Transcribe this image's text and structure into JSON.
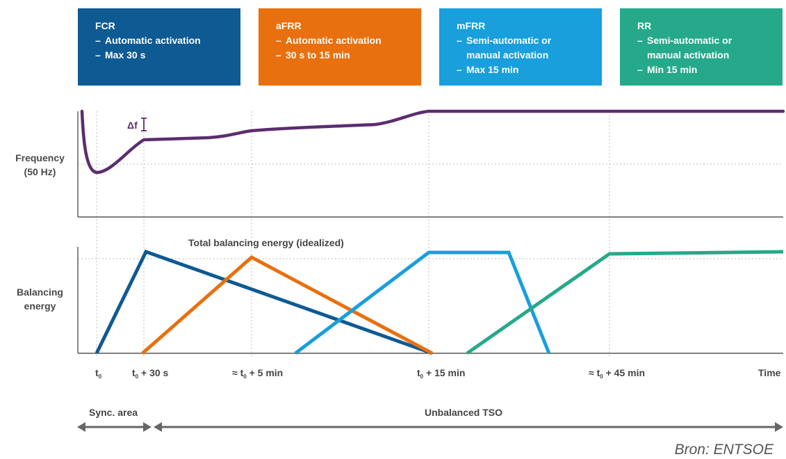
{
  "boxes": [
    {
      "id": "fcr",
      "title": "FCR",
      "color": "#0e5a93",
      "lines": [
        "Automatic activation",
        "Max 30 s"
      ]
    },
    {
      "id": "afrr",
      "title": "aFRR",
      "color": "#e8700f",
      "lines": [
        "Automatic activation",
        "30 s to 15 min"
      ]
    },
    {
      "id": "mfrr",
      "title": "mFRR",
      "color": "#189fdc",
      "lines": [
        "Semi-automatic or\nmanual activation",
        "Max 15 min"
      ]
    },
    {
      "id": "rr",
      "title": "RR",
      "color": "#25a98a",
      "lines": [
        "Semi-automatic or\nmanual activation",
        "Min 15 min"
      ]
    }
  ],
  "dash": "–",
  "labels": {
    "frequency": "Frequency\n(50 Hz)",
    "balancing": "Balancing\nenergy",
    "delta_f": "Δf",
    "total_balancing": "Total balancing energy (idealized)"
  },
  "time_axis": {
    "ticks": [
      {
        "id": "t0",
        "pre": "t",
        "sub": "0",
        "post": ""
      },
      {
        "id": "t30s",
        "pre": "t",
        "sub": "0",
        "post": " + 30 s"
      },
      {
        "id": "t5min",
        "pre": "≈ t",
        "sub": "0",
        "post": " + 5 min"
      },
      {
        "id": "t15min",
        "pre": "t",
        "sub": "0",
        "post": " + 15 min"
      },
      {
        "id": "t45min",
        "pre": "≈ t",
        "sub": "0",
        "post": " + 45 min"
      }
    ],
    "end_label": "Time"
  },
  "bottom": {
    "sync": "Sync. area",
    "unbalanced": "Unbalanced TSO"
  },
  "colors": {
    "frequency_line": "#5b2d6e",
    "fcr": "#0e5a93",
    "afrr": "#e8700f",
    "mfrr": "#189fdc",
    "rr": "#25a98a",
    "axis": "#555555",
    "grid": "#bdbdbd",
    "arrow": "#666666"
  },
  "source": "Bron: ENTSOE"
}
